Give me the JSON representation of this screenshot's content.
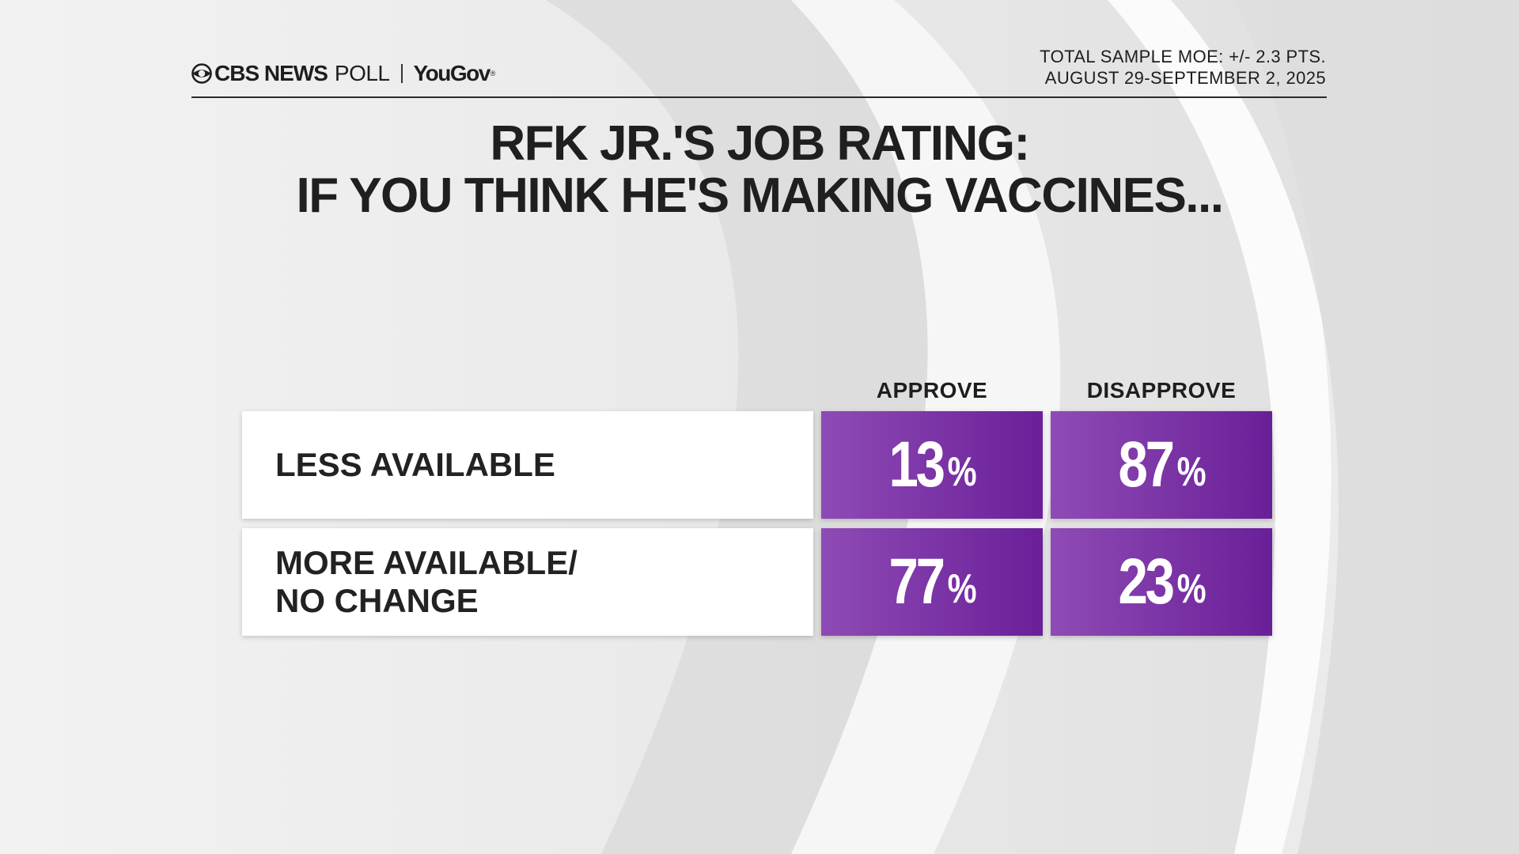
{
  "header": {
    "brand_cbs": "CBS NEWS",
    "brand_poll": "POLL",
    "brand_yougov": "YouGov",
    "brand_reg": "®",
    "moe": "TOTAL SAMPLE MOE: +/- 2.3 PTS.",
    "dates": "AUGUST 29-SEPTEMBER 2, 2025"
  },
  "title": {
    "line1": "RFK JR.'S JOB RATING:",
    "line2": "IF YOU THINK HE'S MAKING VACCINES..."
  },
  "colors": {
    "cell_light": "#8e4bb5",
    "cell_dark": "#6a1f98",
    "text_dark": "#1e1e1e"
  },
  "chart_data": {
    "type": "table",
    "title": "RFK JR.'S JOB RATING: IF YOU THINK HE'S MAKING VACCINES...",
    "columns": [
      "APPROVE",
      "DISAPPROVE"
    ],
    "rows": [
      {
        "label": "LESS AVAILABLE",
        "values": [
          "13",
          "87"
        ]
      },
      {
        "label": "MORE AVAILABLE/\nNO CHANGE",
        "values": [
          "77",
          "23"
        ]
      }
    ],
    "unit": "%"
  }
}
